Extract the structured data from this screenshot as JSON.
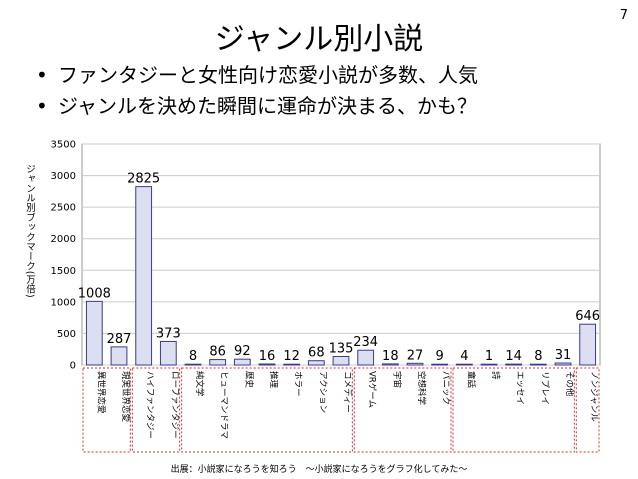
{
  "page_number": "7",
  "title": "ジャンル別小説",
  "bullets": [
    "ファンタジーと女性向け恋愛小説が多数、人気",
    "ジャンルを決めた瞬間に運命が決まる、かも？"
  ],
  "source": "出展：小説家になろうを知ろう　～小説家になろうをグラフ化してみた～",
  "colors": {
    "bar_fill": "#dcdff0",
    "bar_stroke": "#3a3a8c",
    "group_border": "#cc3333",
    "grid": "#cccccc"
  },
  "chart_data": {
    "type": "bar",
    "ylabel": "ジャンル別ブックマーク(万倍)",
    "ylim": [
      0,
      3500
    ],
    "yticks": [
      0,
      500,
      1000,
      1500,
      2000,
      2500,
      3000,
      3500
    ],
    "grid": true,
    "categories": [
      "異世界恋愛",
      "現実世界恋愛",
      "ハイファンタジー",
      "ローファンタジー",
      "純文学",
      "ヒューマンドラマ",
      "歴史",
      "推理",
      "ホラー",
      "アクション",
      "コメディー",
      "VRゲーム",
      "宇宙",
      "空想科学",
      "パニック",
      "童話",
      "詩",
      "エッセイ",
      "リプレイ",
      "その他",
      "ノンジャンル"
    ],
    "values": [
      1008,
      287,
      2825,
      373,
      8,
      86,
      92,
      16,
      12,
      68,
      135,
      234,
      18,
      27,
      9,
      4,
      1,
      14,
      8,
      31,
      646
    ],
    "groups": [
      [
        0,
        1
      ],
      [
        2,
        3
      ],
      [
        4,
        10
      ],
      [
        11,
        14
      ],
      [
        15,
        19
      ],
      [
        20,
        20
      ]
    ]
  }
}
